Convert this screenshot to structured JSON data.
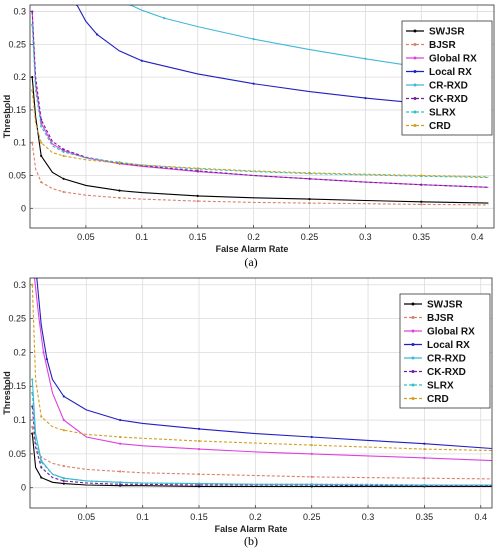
{
  "chart_data": [
    {
      "type": "line",
      "panel_label": "(a)",
      "xlabel": "False Alarm Rate",
      "ylabel": "Threshold",
      "xlim": [
        0,
        0.415
      ],
      "ylim": [
        -0.03,
        0.31
      ],
      "xticks": [
        0.05,
        0.1,
        0.15,
        0.2,
        0.25,
        0.3,
        0.35,
        0.4
      ],
      "xtick_labels": [
        "0.05",
        "0.1",
        "0.15",
        "0.2",
        "0.25",
        "0.3",
        "0.35",
        "0.4"
      ],
      "yticks": [
        0,
        0.05,
        0.1,
        0.15,
        0.2,
        0.25,
        0.3
      ],
      "ytick_labels": [
        "0",
        "0.05",
        "0.1",
        "0.15",
        "0.2",
        "0.25",
        "0.3"
      ],
      "grid": true,
      "legend_position": "top-right",
      "series": [
        {
          "name": "SWJSR",
          "color": "#000000",
          "x": [
            0.002,
            0.005,
            0.01,
            0.02,
            0.03,
            0.05,
            0.08,
            0.1,
            0.15,
            0.2,
            0.25,
            0.3,
            0.35,
            0.41
          ],
          "y": [
            0.2,
            0.14,
            0.08,
            0.055,
            0.045,
            0.035,
            0.027,
            0.024,
            0.019,
            0.016,
            0.014,
            0.012,
            0.01,
            0.008
          ]
        },
        {
          "name": "BJSR",
          "color": "#d9826b",
          "x": [
            0.002,
            0.005,
            0.01,
            0.02,
            0.03,
            0.05,
            0.08,
            0.1,
            0.15,
            0.2,
            0.25,
            0.3,
            0.35,
            0.41
          ],
          "y": [
            0.1,
            0.06,
            0.04,
            0.03,
            0.025,
            0.02,
            0.016,
            0.014,
            0.011,
            0.009,
            0.008,
            0.007,
            0.006,
            0.005
          ]
        },
        {
          "name": "Global RX",
          "color": "#e040e0",
          "x": [
            0.002,
            0.005,
            0.01,
            0.02,
            0.03,
            0.05,
            0.08,
            0.1,
            0.15,
            0.2,
            0.25,
            0.3,
            0.35,
            0.41
          ],
          "y": [
            0.3,
            0.19,
            0.13,
            0.098,
            0.088,
            0.077,
            0.068,
            0.064,
            0.056,
            0.05,
            0.045,
            0.04,
            0.036,
            0.032
          ]
        },
        {
          "name": "Local RX",
          "color": "#2020c0",
          "x": [
            0.042,
            0.05,
            0.06,
            0.08,
            0.1,
            0.15,
            0.2,
            0.25,
            0.3,
            0.35,
            0.41
          ],
          "y": [
            0.31,
            0.285,
            0.265,
            0.24,
            0.225,
            0.205,
            0.19,
            0.178,
            0.168,
            0.16,
            0.15
          ]
        },
        {
          "name": "CR-RXD",
          "color": "#40b8d8",
          "x": [
            0.09,
            0.1,
            0.12,
            0.15,
            0.2,
            0.25,
            0.3,
            0.35,
            0.41
          ],
          "y": [
            0.31,
            0.302,
            0.29,
            0.277,
            0.258,
            0.242,
            0.228,
            0.215,
            0.2
          ]
        },
        {
          "name": "CK-RXD",
          "color": "#7020a0",
          "x": [
            0.002,
            0.005,
            0.01,
            0.02,
            0.03,
            0.05,
            0.08,
            0.1,
            0.15,
            0.2,
            0.25,
            0.3,
            0.35,
            0.41
          ],
          "y": [
            0.3,
            0.2,
            0.135,
            0.102,
            0.09,
            0.078,
            0.069,
            0.065,
            0.057,
            0.05,
            0.045,
            0.04,
            0.036,
            0.032
          ]
        },
        {
          "name": "SLRX",
          "color": "#30c0c0",
          "x": [
            0.002,
            0.005,
            0.01,
            0.02,
            0.03,
            0.05,
            0.08,
            0.1,
            0.15,
            0.2,
            0.25,
            0.3,
            0.35,
            0.41
          ],
          "y": [
            0.28,
            0.18,
            0.125,
            0.095,
            0.086,
            0.077,
            0.07,
            0.066,
            0.06,
            0.056,
            0.053,
            0.051,
            0.049,
            0.047
          ]
        },
        {
          "name": "CRD",
          "color": "#d4a020",
          "x": [
            0.002,
            0.005,
            0.01,
            0.02,
            0.03,
            0.05,
            0.08,
            0.1,
            0.15,
            0.2,
            0.25,
            0.3,
            0.35,
            0.41
          ],
          "y": [
            0.18,
            0.13,
            0.1,
            0.085,
            0.08,
            0.074,
            0.069,
            0.066,
            0.061,
            0.057,
            0.054,
            0.052,
            0.05,
            0.048
          ]
        }
      ]
    },
    {
      "type": "line",
      "panel_label": "(b)",
      "xlabel": "False Alarm Rate",
      "ylabel": "Threshold",
      "xlim": [
        0,
        0.41
      ],
      "ylim": [
        -0.03,
        0.31
      ],
      "xticks": [
        0.05,
        0.1,
        0.15,
        0.2,
        0.25,
        0.3,
        0.35,
        0.4
      ],
      "xtick_labels": [
        "0.05",
        "0.1",
        "0.15",
        "0.2",
        "0.25",
        "0.3",
        "0.35",
        "0.4"
      ],
      "yticks": [
        0,
        0.05,
        0.1,
        0.15,
        0.2,
        0.25,
        0.3
      ],
      "ytick_labels": [
        "0",
        "0.05",
        "0.1",
        "0.15",
        "0.2",
        "0.25",
        "0.3"
      ],
      "grid": true,
      "legend_position": "top-right",
      "series": [
        {
          "name": "SWJSR",
          "color": "#000000",
          "x": [
            0.002,
            0.005,
            0.01,
            0.02,
            0.03,
            0.05,
            0.08,
            0.1,
            0.15,
            0.2,
            0.25,
            0.3,
            0.35,
            0.41
          ],
          "y": [
            0.08,
            0.03,
            0.015,
            0.008,
            0.006,
            0.004,
            0.003,
            0.003,
            0.002,
            0.002,
            0.002,
            0.002,
            0.002,
            0.002
          ]
        },
        {
          "name": "BJSR",
          "color": "#d9826b",
          "x": [
            0.002,
            0.005,
            0.01,
            0.02,
            0.03,
            0.05,
            0.08,
            0.1,
            0.15,
            0.2,
            0.25,
            0.3,
            0.35,
            0.41
          ],
          "y": [
            0.09,
            0.06,
            0.045,
            0.036,
            0.032,
            0.027,
            0.024,
            0.022,
            0.02,
            0.018,
            0.016,
            0.015,
            0.014,
            0.013
          ]
        },
        {
          "name": "Global RX",
          "color": "#e040e0",
          "x": [
            0.004,
            0.008,
            0.012,
            0.02,
            0.03,
            0.05,
            0.08,
            0.1,
            0.15,
            0.2,
            0.25,
            0.3,
            0.35,
            0.41
          ],
          "y": [
            0.31,
            0.25,
            0.2,
            0.14,
            0.1,
            0.075,
            0.065,
            0.062,
            0.057,
            0.053,
            0.05,
            0.047,
            0.044,
            0.04
          ]
        },
        {
          "name": "Local RX",
          "color": "#2020c0",
          "x": [
            0.006,
            0.01,
            0.015,
            0.02,
            0.03,
            0.05,
            0.08,
            0.1,
            0.15,
            0.2,
            0.25,
            0.3,
            0.35,
            0.41
          ],
          "y": [
            0.31,
            0.24,
            0.19,
            0.16,
            0.135,
            0.115,
            0.1,
            0.095,
            0.087,
            0.08,
            0.075,
            0.07,
            0.065,
            0.058
          ]
        },
        {
          "name": "CR-RXD",
          "color": "#40b8d8",
          "x": [
            0.002,
            0.005,
            0.01,
            0.02,
            0.03,
            0.05,
            0.08,
            0.1,
            0.15,
            0.2,
            0.25,
            0.3,
            0.35,
            0.41
          ],
          "y": [
            0.16,
            0.08,
            0.04,
            0.02,
            0.014,
            0.01,
            0.008,
            0.007,
            0.006,
            0.005,
            0.005,
            0.004,
            0.004,
            0.004
          ]
        },
        {
          "name": "CK-RXD",
          "color": "#7020a0",
          "x": [
            0.002,
            0.005,
            0.01,
            0.02,
            0.03,
            0.05,
            0.08,
            0.1,
            0.15,
            0.2,
            0.25,
            0.3,
            0.35,
            0.41
          ],
          "y": [
            0.12,
            0.06,
            0.03,
            0.015,
            0.01,
            0.007,
            0.005,
            0.005,
            0.004,
            0.004,
            0.004,
            0.003,
            0.003,
            0.003
          ]
        },
        {
          "name": "SLRX",
          "color": "#30c0c0",
          "x": [
            0.002,
            0.005,
            0.01,
            0.02,
            0.03,
            0.05,
            0.08,
            0.1,
            0.15,
            0.2,
            0.25,
            0.3,
            0.35,
            0.41
          ],
          "y": [
            0.14,
            0.07,
            0.038,
            0.02,
            0.014,
            0.01,
            0.008,
            0.007,
            0.006,
            0.005,
            0.005,
            0.005,
            0.004,
            0.004
          ]
        },
        {
          "name": "CRD",
          "color": "#d4a020",
          "x": [
            0.002,
            0.005,
            0.01,
            0.02,
            0.03,
            0.05,
            0.08,
            0.1,
            0.15,
            0.2,
            0.25,
            0.3,
            0.35,
            0.41
          ],
          "y": [
            0.3,
            0.16,
            0.105,
            0.09,
            0.085,
            0.079,
            0.075,
            0.073,
            0.069,
            0.066,
            0.063,
            0.06,
            0.057,
            0.055
          ]
        }
      ]
    }
  ]
}
